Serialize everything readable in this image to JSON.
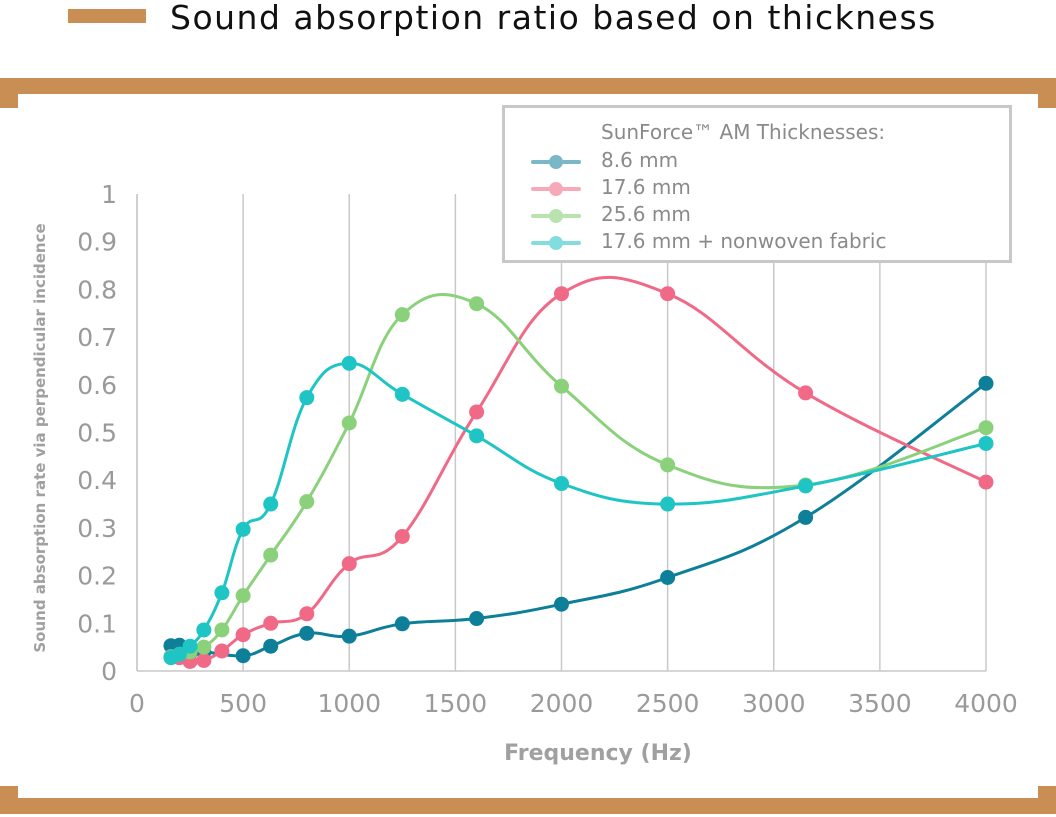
{
  "header": {
    "title": "Sound absorption ratio based on thickness",
    "accent_color": "#c98e54"
  },
  "chart_data": {
    "type": "line",
    "xlabel": "Frequency (Hz)",
    "ylabel": "Sound absorption rate via perpendicular incidence",
    "xlim": [
      0,
      4000
    ],
    "ylim": [
      0,
      1
    ],
    "xticks": [
      0,
      500,
      1000,
      1500,
      2000,
      2500,
      3000,
      3500,
      4000
    ],
    "yticks": [
      0,
      0.1,
      0.2,
      0.3,
      0.4,
      0.5,
      0.6,
      0.7,
      0.8,
      0.9,
      1
    ],
    "ytick_labels": [
      "0",
      "0.1",
      "0.2",
      "0.3",
      "0.4",
      "0.5",
      "0.6",
      "0.7",
      "0.8",
      "0.9",
      "1"
    ],
    "grid": "vertical",
    "legend_title": "SunForce™ AM Thicknesses:",
    "legend_position": "top-right",
    "series": [
      {
        "name": "8.6 mm",
        "color": "#0e7f99",
        "legend_color": "#7ab8c8",
        "x": [
          160,
          200,
          250,
          315,
          500,
          630,
          800,
          1000,
          1250,
          1600,
          2000,
          2500,
          3150,
          4000
        ],
        "y": [
          0.053,
          0.054,
          0.038,
          0.04,
          0.032,
          0.052,
          0.079,
          0.073,
          0.099,
          0.11,
          0.14,
          0.196,
          0.322,
          0.603
        ]
      },
      {
        "name": "17.6 mm",
        "color": "#f06a87",
        "legend_color": "#f7a9ba",
        "x": [
          160,
          200,
          250,
          315,
          400,
          500,
          630,
          800,
          1000,
          1250,
          1600,
          2000,
          2500,
          3150,
          4000
        ],
        "y": [
          0.03,
          0.028,
          0.02,
          0.022,
          0.042,
          0.076,
          0.1,
          0.12,
          0.225,
          0.282,
          0.543,
          0.791,
          0.791,
          0.583,
          0.396
        ]
      },
      {
        "name": "25.6 mm",
        "color": "#8bd17c",
        "legend_color": "#b8e3ae",
        "x": [
          160,
          200,
          250,
          315,
          400,
          500,
          630,
          800,
          1000,
          1250,
          1600,
          2000,
          2500,
          3150,
          4000
        ],
        "y": [
          0.03,
          0.035,
          0.04,
          0.05,
          0.086,
          0.158,
          0.243,
          0.355,
          0.52,
          0.747,
          0.77,
          0.597,
          0.432,
          0.39,
          0.51
        ]
      },
      {
        "name": "17.6 mm + nonwoven fabric",
        "color": "#1fc4c4",
        "legend_color": "#82dede",
        "x": [
          160,
          200,
          250,
          315,
          400,
          500,
          630,
          800,
          1000,
          1250,
          1600,
          2000,
          2500,
          3150,
          4000
        ],
        "y": [
          0.028,
          0.035,
          0.052,
          0.086,
          0.164,
          0.297,
          0.35,
          0.573,
          0.645,
          0.58,
          0.493,
          0.393,
          0.35,
          0.388,
          0.477
        ]
      }
    ]
  }
}
